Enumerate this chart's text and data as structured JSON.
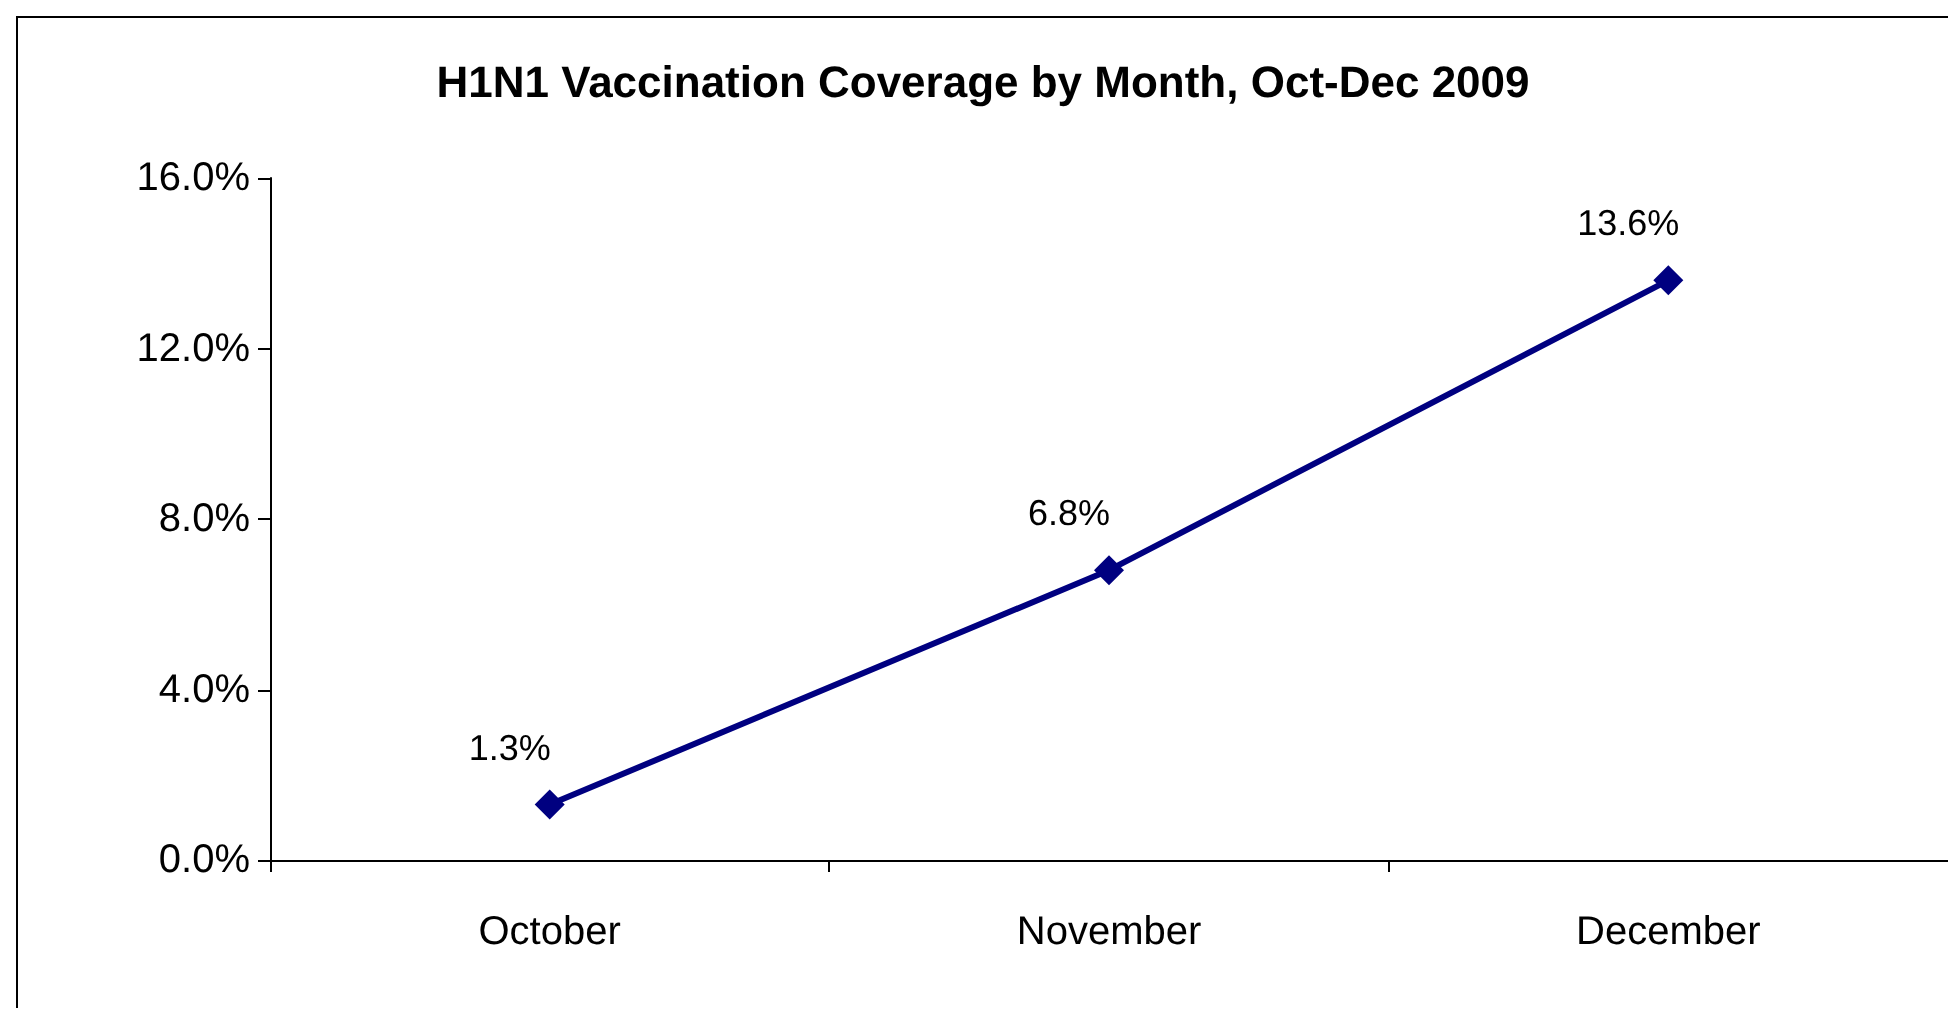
{
  "chart_data": {
    "type": "line",
    "title": "H1N1 Vaccination Coverage by Month, Oct-Dec 2009",
    "categories": [
      "October",
      "November",
      "December"
    ],
    "series": [
      {
        "color": "#000080",
        "values": [
          1.3,
          6.8,
          13.6
        ],
        "value_labels": [
          "1.3%",
          "6.8%",
          "13.6%"
        ]
      }
    ],
    "ylim": [
      0,
      16
    ],
    "yticks": [
      {
        "value": 0,
        "label": "0.0%"
      },
      {
        "value": 4,
        "label": "4.0%"
      },
      {
        "value": 8,
        "label": "8.0%"
      },
      {
        "value": 12,
        "label": "12.0%"
      },
      {
        "value": 16,
        "label": "16.0%"
      }
    ],
    "marker": "diamond",
    "line_style": "solid"
  }
}
